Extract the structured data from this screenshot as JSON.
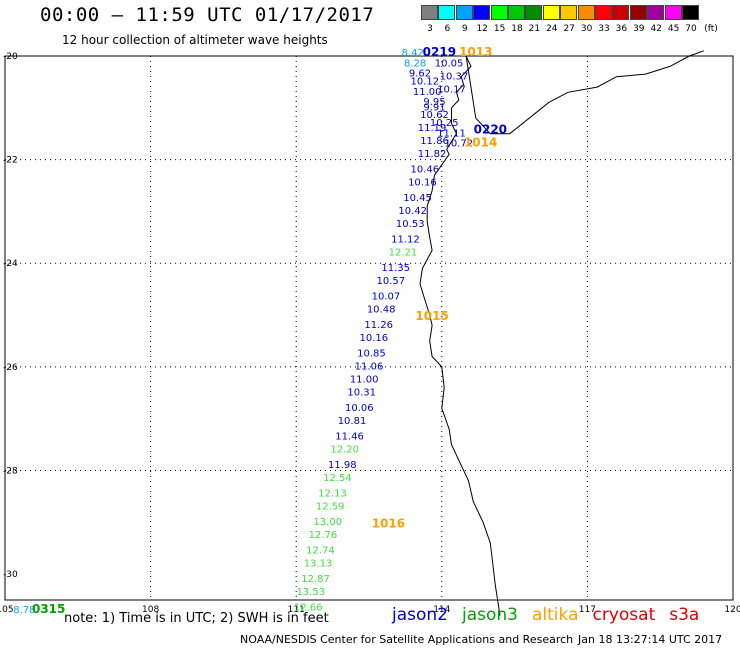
{
  "header": {
    "title": "00:00 – 11:59 UTC 01/17/2017",
    "subtitle": "12 hour collection of altimeter wave heights"
  },
  "legend": {
    "unit": "(ft)",
    "bins": [
      {
        "label": "3",
        "color": "#808080"
      },
      {
        "label": "6",
        "color": "#00ffff"
      },
      {
        "label": "9",
        "color": "#00a0ff"
      },
      {
        "label": "12",
        "color": "#0000ff"
      },
      {
        "label": "15",
        "color": "#00ff00"
      },
      {
        "label": "18",
        "color": "#00c800"
      },
      {
        "label": "21",
        "color": "#008c00"
      },
      {
        "label": "24",
        "color": "#ffff00"
      },
      {
        "label": "27",
        "color": "#ffc800"
      },
      {
        "label": "30",
        "color": "#ff8c00"
      },
      {
        "label": "33",
        "color": "#ff0000"
      },
      {
        "label": "36",
        "color": "#c80000"
      },
      {
        "label": "39",
        "color": "#960000"
      },
      {
        "label": "42",
        "color": "#a000a0"
      },
      {
        "label": "45",
        "color": "#ff00ff"
      },
      {
        "label": "70",
        "color": "#000000"
      }
    ]
  },
  "axes": {
    "lon_ticks": [
      "105",
      "108",
      "111",
      "114",
      "117",
      "120"
    ],
    "lat_ticks": [
      "-20",
      "-22",
      "-24",
      "-26",
      "-28",
      "-30"
    ]
  },
  "satellites": [
    {
      "name": "jason2",
      "color": "#0000d0"
    },
    {
      "name": "jason3",
      "color": "#00a000"
    },
    {
      "name": "altika",
      "color": "#ffa000"
    },
    {
      "name": "cryosat",
      "color": "#e00000"
    },
    {
      "name": "s3a",
      "color": "#e00000"
    }
  ],
  "footer": {
    "note": "note:  1) Time is in UTC; 2) SWH is in feet",
    "credit": "NOAA/NESDIS Center for Satellite Applications and Research",
    "timestamp": "Jan 18  13:27:14 UTC 2017"
  },
  "track_times": [
    {
      "label": "0219",
      "lon": 113.95,
      "lat": -20.0,
      "color": "#0000d0"
    },
    {
      "label": "1013",
      "lon": 114.7,
      "lat": -20.0,
      "color": "#ffa000"
    },
    {
      "label": "0220",
      "lon": 115.0,
      "lat": -21.5,
      "color": "#0000d0"
    },
    {
      "label": "1014",
      "lon": 114.8,
      "lat": -21.75,
      "color": "#ffa000"
    },
    {
      "label": "1015",
      "lon": 113.8,
      "lat": -25.1,
      "color": "#ffa000"
    },
    {
      "label": "1016",
      "lon": 112.9,
      "lat": -29.1,
      "color": "#ffa000"
    },
    {
      "label": "0315",
      "lon": 105.9,
      "lat": -30.75,
      "color": "#00a000"
    }
  ],
  "wave_points": [
    {
      "text": "8.42",
      "lon": 113.4,
      "lat": -20.0,
      "color": "#00a0ff"
    },
    {
      "text": "10.05",
      "lon": 114.15,
      "lat": -20.2,
      "color": "#0000d0"
    },
    {
      "text": "8.28",
      "lon": 113.45,
      "lat": -20.2,
      "color": "#00a0ff"
    },
    {
      "text": "9.62",
      "lon": 113.55,
      "lat": -20.4,
      "color": "#0000d0"
    },
    {
      "text": "10.37",
      "lon": 114.25,
      "lat": -20.45,
      "color": "#0000d0"
    },
    {
      "text": "10.12",
      "lon": 113.65,
      "lat": -20.55,
      "color": "#0000d0"
    },
    {
      "text": "10.17",
      "lon": 114.2,
      "lat": -20.7,
      "color": "#0000d0"
    },
    {
      "text": "11.00",
      "lon": 113.7,
      "lat": -20.75,
      "color": "#0000d0"
    },
    {
      "text": "9.95",
      "lon": 113.85,
      "lat": -20.95,
      "color": "#0000d0"
    },
    {
      "text": "9.91",
      "lon": 113.85,
      "lat": -21.05,
      "color": "#0000d0"
    },
    {
      "text": "10.62",
      "lon": 113.85,
      "lat": -21.2,
      "color": "#0000d0"
    },
    {
      "text": "10.25",
      "lon": 114.05,
      "lat": -21.35,
      "color": "#0000d0"
    },
    {
      "text": "11.19",
      "lon": 113.8,
      "lat": -21.45,
      "color": "#0000d0"
    },
    {
      "text": "11.11",
      "lon": 114.2,
      "lat": -21.55,
      "color": "#0000d0"
    },
    {
      "text": "11.86",
      "lon": 113.85,
      "lat": -21.7,
      "color": "#0000d0"
    },
    {
      "text": "10.72",
      "lon": 114.35,
      "lat": -21.75,
      "color": "#0000d0"
    },
    {
      "text": "11.82",
      "lon": 113.8,
      "lat": -21.95,
      "color": "#0000d0"
    },
    {
      "text": "10.46",
      "lon": 113.65,
      "lat": -22.25,
      "color": "#0000d0"
    },
    {
      "text": "10.16",
      "lon": 113.6,
      "lat": -22.5,
      "color": "#0000d0"
    },
    {
      "text": "10.45",
      "lon": 113.5,
      "lat": -22.8,
      "color": "#0000d0"
    },
    {
      "text": "10.42",
      "lon": 113.4,
      "lat": -23.05,
      "color": "#0000d0"
    },
    {
      "text": "10.53",
      "lon": 113.35,
      "lat": -23.3,
      "color": "#0000d0"
    },
    {
      "text": "11.12",
      "lon": 113.25,
      "lat": -23.6,
      "color": "#0000d0"
    },
    {
      "text": "12.21",
      "lon": 113.2,
      "lat": -23.85,
      "color": "#40e040"
    },
    {
      "text": "11.35",
      "lon": 113.05,
      "lat": -24.15,
      "color": "#0000d0"
    },
    {
      "text": "10.57",
      "lon": 112.95,
      "lat": -24.4,
      "color": "#0000d0"
    },
    {
      "text": "10.07",
      "lon": 112.85,
      "lat": -24.7,
      "color": "#0000d0"
    },
    {
      "text": "10.48",
      "lon": 112.75,
      "lat": -24.95,
      "color": "#0000d0"
    },
    {
      "text": "11.26",
      "lon": 112.7,
      "lat": -25.25,
      "color": "#0000d0"
    },
    {
      "text": "10.16",
      "lon": 112.6,
      "lat": -25.5,
      "color": "#0000d0"
    },
    {
      "text": "10.85",
      "lon": 112.55,
      "lat": -25.8,
      "color": "#0000d0"
    },
    {
      "text": "11.06",
      "lon": 112.5,
      "lat": -26.05,
      "color": "#0000d0"
    },
    {
      "text": "11.00",
      "lon": 112.4,
      "lat": -26.3,
      "color": "#0000d0"
    },
    {
      "text": "10.31",
      "lon": 112.35,
      "lat": -26.55,
      "color": "#0000d0"
    },
    {
      "text": "10.06",
      "lon": 112.3,
      "lat": -26.85,
      "color": "#0000d0"
    },
    {
      "text": "10.81",
      "lon": 112.15,
      "lat": -27.1,
      "color": "#0000d0"
    },
    {
      "text": "11.46",
      "lon": 112.1,
      "lat": -27.4,
      "color": "#0000d0"
    },
    {
      "text": "12.20",
      "lon": 112.0,
      "lat": -27.65,
      "color": "#40e040"
    },
    {
      "text": "11.98",
      "lon": 111.95,
      "lat": -27.95,
      "color": "#0000d0"
    },
    {
      "text": "12.54",
      "lon": 111.85,
      "lat": -28.2,
      "color": "#40e040"
    },
    {
      "text": "12.13",
      "lon": 111.75,
      "lat": -28.5,
      "color": "#40e040"
    },
    {
      "text": "12.59",
      "lon": 111.7,
      "lat": -28.75,
      "color": "#40e040"
    },
    {
      "text": "13.00",
      "lon": 111.65,
      "lat": -29.05,
      "color": "#40e040"
    },
    {
      "text": "12.76",
      "lon": 111.55,
      "lat": -29.3,
      "color": "#40e040"
    },
    {
      "text": "12.74",
      "lon": 111.5,
      "lat": -29.6,
      "color": "#40e040"
    },
    {
      "text": "13.13",
      "lon": 111.45,
      "lat": -29.85,
      "color": "#40e040"
    },
    {
      "text": "12.87",
      "lon": 111.4,
      "lat": -30.15,
      "color": "#40e040"
    },
    {
      "text": "13.53",
      "lon": 111.3,
      "lat": -30.4,
      "color": "#40e040"
    },
    {
      "text": "12.66",
      "lon": 111.25,
      "lat": -30.7,
      "color": "#40e040"
    },
    {
      "text": "8.78",
      "lon": 105.4,
      "lat": -30.75,
      "color": "#00a0ff"
    }
  ],
  "coastline": [
    [
      114.5,
      -20.0
    ],
    [
      114.6,
      -20.2
    ],
    [
      114.4,
      -20.4
    ],
    [
      114.45,
      -20.55
    ],
    [
      114.3,
      -20.7
    ],
    [
      114.35,
      -20.85
    ],
    [
      114.2,
      -21.0
    ],
    [
      114.2,
      -21.3
    ],
    [
      114.3,
      -21.5
    ],
    [
      114.1,
      -21.8
    ],
    [
      114.15,
      -21.9
    ],
    [
      114.0,
      -22.1
    ],
    [
      113.85,
      -22.3
    ],
    [
      113.8,
      -22.6
    ],
    [
      113.7,
      -22.9
    ],
    [
      113.7,
      -23.2
    ],
    [
      113.75,
      -23.5
    ],
    [
      113.8,
      -23.75
    ],
    [
      113.6,
      -24.1
    ],
    [
      113.55,
      -24.4
    ],
    [
      113.65,
      -24.7
    ],
    [
      113.75,
      -25.0
    ],
    [
      113.8,
      -25.2
    ],
    [
      113.75,
      -25.5
    ],
    [
      113.8,
      -25.8
    ],
    [
      114.0,
      -26.0
    ],
    [
      114.05,
      -26.4
    ],
    [
      114.0,
      -26.8
    ],
    [
      114.15,
      -27.2
    ],
    [
      114.2,
      -27.5
    ],
    [
      114.4,
      -27.9
    ],
    [
      114.55,
      -28.2
    ],
    [
      114.65,
      -28.6
    ],
    [
      114.85,
      -29.0
    ],
    [
      115.0,
      -29.4
    ],
    [
      115.05,
      -29.8
    ],
    [
      115.1,
      -30.2
    ],
    [
      115.2,
      -30.8
    ]
  ],
  "north_coast": [
    [
      114.5,
      -20.0
    ],
    [
      114.7,
      -21.2
    ],
    [
      115.0,
      -21.5
    ],
    [
      115.4,
      -21.5
    ],
    [
      115.8,
      -21.2
    ],
    [
      116.2,
      -20.9
    ],
    [
      116.6,
      -20.7
    ],
    [
      117.2,
      -20.6
    ],
    [
      117.6,
      -20.4
    ],
    [
      118.2,
      -20.35
    ],
    [
      118.7,
      -20.2
    ],
    [
      119.1,
      -20.0
    ],
    [
      119.4,
      -19.9
    ]
  ]
}
